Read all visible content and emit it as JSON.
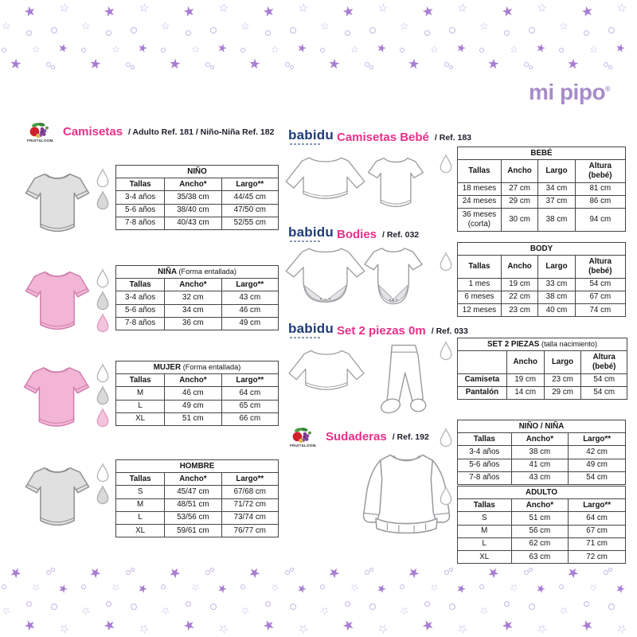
{
  "page": {
    "brand_logo": "mi pipo",
    "registered_mark": "®"
  },
  "colors": {
    "accent-pink": "#e8308a",
    "brand-purple": "#a78cc9",
    "babidu-blue": "#1e3c7b",
    "text-dark": "#1d1d2b",
    "star-fill": "#a87bd4",
    "star-outline": "#c5b5e7",
    "tee-gray": "#e0e0e0",
    "tee-pink": "#f3b5d5"
  },
  "sections": {
    "camisetas": {
      "brand": "FRUIT&LOOM.",
      "title": "Camisetas",
      "ref": "/ Adulto Ref. 181 / Niño-Niña Ref. 182"
    },
    "camisetas_bebe": {
      "brand": "babidu",
      "title": "Camisetas Bebé",
      "ref": "/ Ref. 183"
    },
    "bodies": {
      "brand": "babidu",
      "title": "Bodies",
      "ref": "/ Ref. 032"
    },
    "set_2_piezas": {
      "brand": "babidu",
      "title": "Set 2 piezas 0m",
      "ref": "/ Ref. 033"
    },
    "sudaderas": {
      "brand": "FRUIT&LOOM.",
      "title": "Sudaderas",
      "ref": "/ Ref. 192"
    }
  },
  "tables": {
    "nino": {
      "title": "NIÑO",
      "subtitle": "",
      "headers": [
        "Tallas",
        "Ancho*",
        "Largo**"
      ],
      "rows": [
        [
          "3-4 años",
          "35/38 cm",
          "44/45 cm"
        ],
        [
          "5-6 años",
          "38/40 cm",
          "47/50 cm"
        ],
        [
          "7-8 años",
          "40/43 cm",
          "52/55 cm"
        ]
      ]
    },
    "nina": {
      "title": "NIÑA",
      "subtitle": "(Forma entallada)",
      "headers": [
        "Tallas",
        "Ancho*",
        "Largo**"
      ],
      "rows": [
        [
          "3-4 años",
          "32 cm",
          "43 cm"
        ],
        [
          "5-6 años",
          "34 cm",
          "46 cm"
        ],
        [
          "7-8 años",
          "36 cm",
          "49 cm"
        ]
      ]
    },
    "mujer": {
      "title": "MUJER",
      "subtitle": "(Forma entallada)",
      "headers": [
        "Tallas",
        "Ancho*",
        "Largo**"
      ],
      "rows": [
        [
          "M",
          "46 cm",
          "64 cm"
        ],
        [
          "L",
          "49 cm",
          "65 cm"
        ],
        [
          "XL",
          "51 cm",
          "66 cm"
        ]
      ]
    },
    "hombre": {
      "title": "HOMBRE",
      "subtitle": "",
      "headers": [
        "Tallas",
        "Ancho*",
        "Largo**"
      ],
      "rows": [
        [
          "S",
          "45/47 cm",
          "67/68 cm"
        ],
        [
          "M",
          "48/51 cm",
          "71/72 cm"
        ],
        [
          "L",
          "53/56 cm",
          "73/74 cm"
        ],
        [
          "XL",
          "59/61 cm",
          "76/77 cm"
        ]
      ]
    },
    "bebe": {
      "title": "BEBÉ",
      "subtitle": "",
      "headers": [
        "Tallas",
        "Ancho",
        "Largo",
        "Altura (bebé)"
      ],
      "rows": [
        [
          "18 meses",
          "27 cm",
          "34 cm",
          "81 cm"
        ],
        [
          "24 meses",
          "29 cm",
          "37 cm",
          "86 cm"
        ],
        [
          "36 meses\n(corta)",
          "30 cm",
          "38 cm",
          "94 cm"
        ]
      ]
    },
    "body": {
      "title": "BODY",
      "subtitle": "",
      "headers": [
        "Tallas",
        "Ancho",
        "Largo",
        "Altura (bebé)"
      ],
      "rows": [
        [
          "1 mes",
          "19 cm",
          "33 cm",
          "54 cm"
        ],
        [
          "6 meses",
          "22 cm",
          "38 cm",
          "67 cm"
        ],
        [
          "12 meses",
          "23 cm",
          "40 cm",
          "74 cm"
        ]
      ]
    },
    "set": {
      "title": "SET 2 PIEZAS",
      "subtitle": "(talla nacimiento)",
      "headers": [
        "",
        "Ancho",
        "Largo",
        "Altura (bebé)"
      ],
      "rows": [
        [
          "Camiseta",
          "19 cm",
          "23 cm",
          "54 cm"
        ],
        [
          "Pantalón",
          "14 cm",
          "29 cm",
          "54 cm"
        ]
      ]
    },
    "nino_nina": {
      "title": "NIÑO / NIÑA",
      "subtitle": "",
      "headers": [
        "Tallas",
        "Ancho*",
        "Largo**"
      ],
      "rows": [
        [
          "3-4 años",
          "38 cm",
          "42 cm"
        ],
        [
          "5-6 años",
          "41 cm",
          "49 cm"
        ],
        [
          "7-8 años",
          "43 cm",
          "54 cm"
        ]
      ]
    },
    "adulto": {
      "title": "ADULTO",
      "subtitle": "",
      "headers": [
        "Tallas",
        "Ancho*",
        "Largo**"
      ],
      "rows": [
        [
          "S",
          "51 cm",
          "64 cm"
        ],
        [
          "M",
          "56 cm",
          "67 cm"
        ],
        [
          "L",
          "62 cm",
          "71 cm"
        ],
        [
          "XL",
          "63 cm",
          "72 cm"
        ]
      ]
    }
  }
}
